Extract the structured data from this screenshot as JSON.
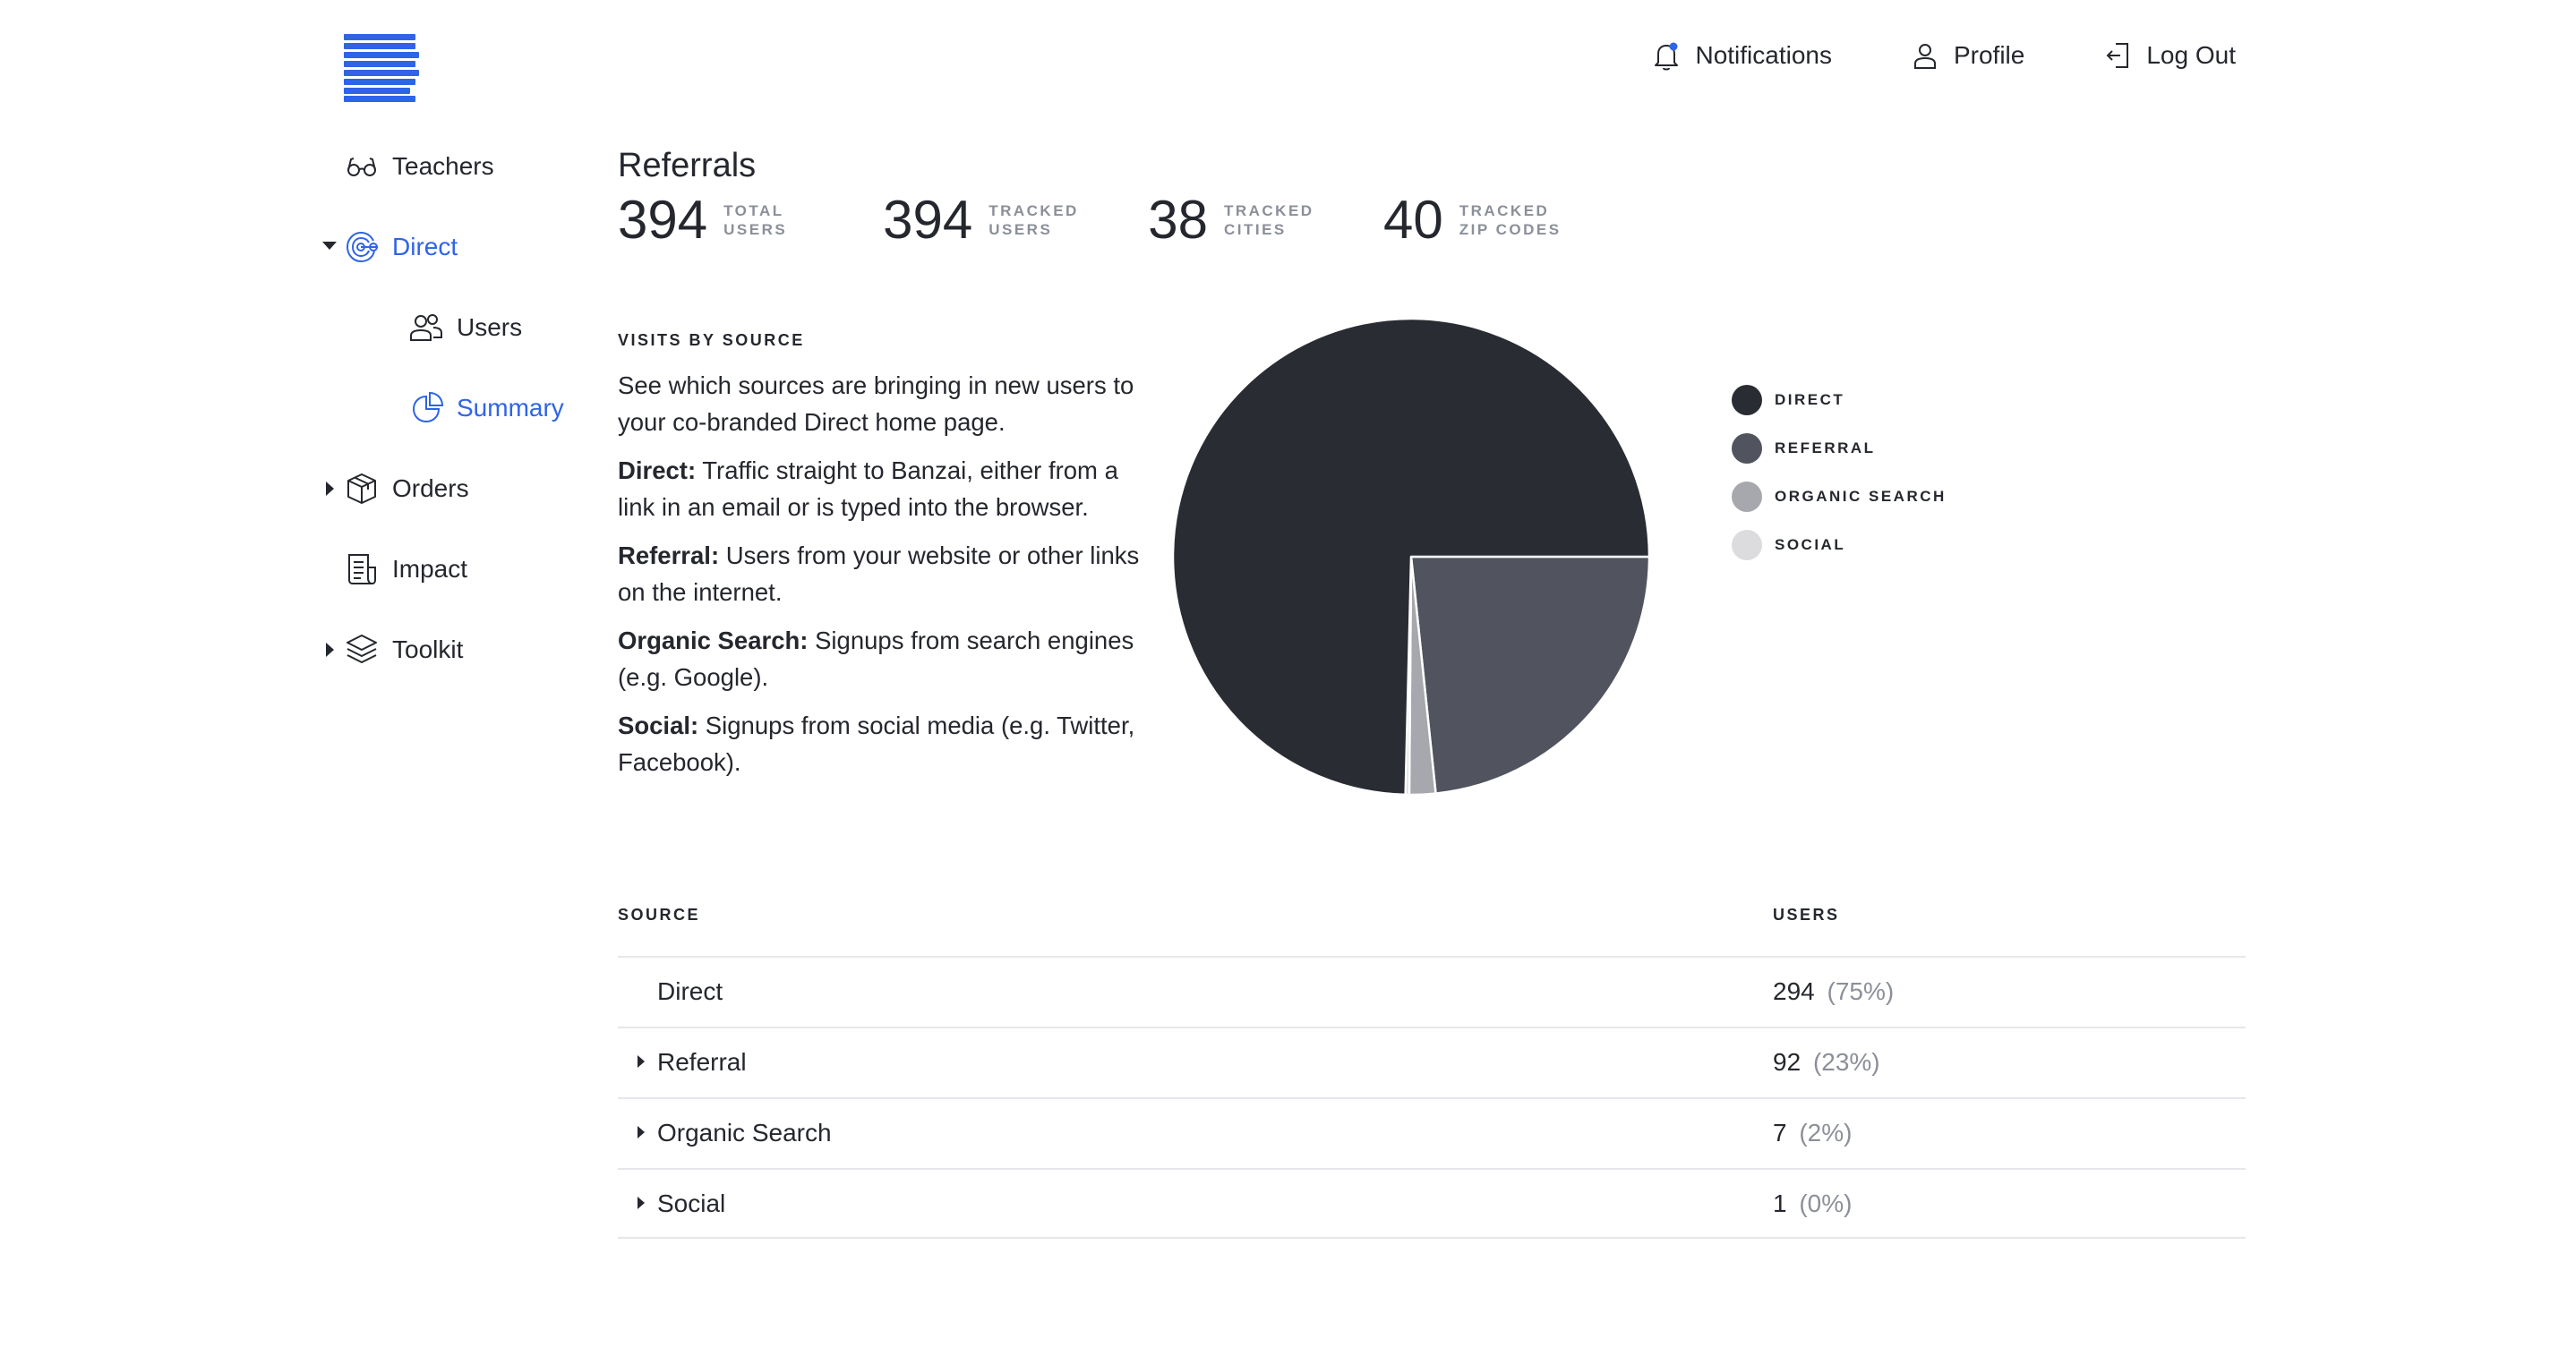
{
  "header": {
    "nav": [
      {
        "key": "notifications",
        "label": "Notifications",
        "icon": "bell-icon"
      },
      {
        "key": "profile",
        "label": "Profile",
        "icon": "person-icon"
      },
      {
        "key": "logout",
        "label": "Log Out",
        "icon": "logout-icon"
      }
    ]
  },
  "sidebar": {
    "items": [
      {
        "label": "Teachers",
        "icon": "glasses-icon"
      },
      {
        "label": "Direct",
        "icon": "target-icon",
        "active": true,
        "expanded": true
      },
      {
        "label": "Users",
        "icon": "users-icon"
      },
      {
        "label": "Summary",
        "icon": "pie-chart-icon",
        "active": true
      },
      {
        "label": "Orders",
        "icon": "box-icon"
      },
      {
        "label": "Impact",
        "icon": "report-icon"
      },
      {
        "label": "Toolkit",
        "icon": "layers-icon"
      }
    ]
  },
  "main": {
    "title": "Referrals",
    "stats": [
      {
        "value": "394",
        "label_line1": "TOTAL",
        "label_line2": "USERS"
      },
      {
        "value": "394",
        "label_line1": "TRACKED",
        "label_line2": "USERS"
      },
      {
        "value": "38",
        "label_line1": "TRACKED",
        "label_line2": "CITIES"
      },
      {
        "value": "40",
        "label_line1": "TRACKED",
        "label_line2": "ZIP CODES"
      }
    ],
    "visits_label": "VISITS BY SOURCE",
    "intro": "See which sources are bringing in new users to your co-branded Direct home page.",
    "definitions": [
      {
        "term": "Direct:",
        "text": " Traffic straight to Banzai, either from a link in an email or is typed into the browser."
      },
      {
        "term": "Referral:",
        "text": " Users from your website or other links on the internet."
      },
      {
        "term": "Organic Search:",
        "text": " Signups from search engines (e.g. Google)."
      },
      {
        "term": "Social:",
        "text": " Signups from social media (e.g. Twitter, Facebook)."
      }
    ],
    "table": {
      "col_source": "SOURCE",
      "col_users": "USERS",
      "rows": [
        {
          "source": "Direct",
          "users": "294",
          "pct": "(75%)",
          "expandable": false
        },
        {
          "source": "Referral",
          "users": "92",
          "pct": "(23%)",
          "expandable": true
        },
        {
          "source": "Organic Search",
          "users": "7",
          "pct": "(2%)",
          "expandable": true
        },
        {
          "source": "Social",
          "users": "1",
          "pct": "(0%)",
          "expandable": true
        }
      ]
    }
  },
  "chart_data": {
    "type": "pie",
    "categories": [
      "DIRECT",
      "REFERRAL",
      "ORGANIC SEARCH",
      "SOCIAL"
    ],
    "values": [
      294,
      92,
      7,
      1
    ],
    "colors": [
      "#2a2c33",
      "#51545e",
      "#a6a8ad",
      "#dcdcde"
    ],
    "legend": "right"
  }
}
